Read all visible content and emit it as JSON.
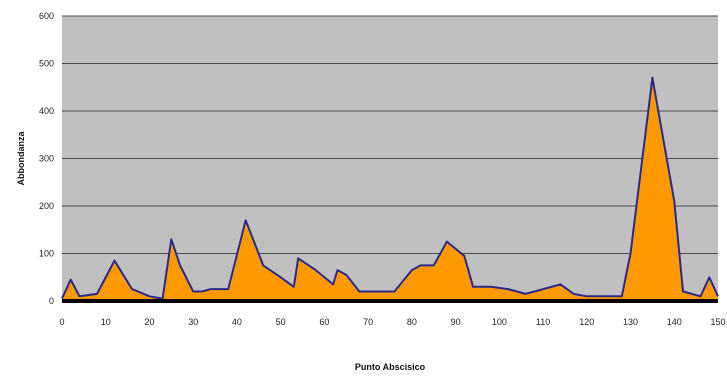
{
  "chart_data": {
    "type": "area",
    "title": "",
    "xlabel": "Punto Abscisico",
    "ylabel": "Abbondanza",
    "xlim": [
      0,
      150
    ],
    "ylim": [
      0,
      600
    ],
    "x_ticks": [
      0,
      10,
      20,
      30,
      40,
      50,
      60,
      70,
      80,
      90,
      100,
      110,
      120,
      130,
      140,
      150
    ],
    "y_ticks": [
      0,
      100,
      200,
      300,
      400,
      500,
      600
    ],
    "grid": "horizontal",
    "legend": "none",
    "colors": {
      "plot_background": "#c0c0c0",
      "area_fill": "#ff9900",
      "line": "#2a2a8a",
      "gridline": "#4a4a4a",
      "baseline": "#000000"
    },
    "series": [
      {
        "x": [
          0,
          2,
          4,
          8,
          12,
          16,
          20,
          23,
          25,
          27,
          30,
          32,
          34,
          38,
          42,
          46,
          50,
          53,
          54,
          58,
          62,
          63,
          65,
          68,
          72,
          76,
          80,
          82,
          85,
          88,
          92,
          94,
          98,
          102,
          106,
          110,
          114,
          117,
          120,
          124,
          128,
          130,
          135,
          140,
          142,
          144,
          146,
          148,
          150
        ],
        "values": [
          5,
          45,
          10,
          15,
          85,
          25,
          10,
          5,
          130,
          75,
          20,
          20,
          25,
          25,
          170,
          75,
          50,
          30,
          90,
          65,
          35,
          65,
          55,
          20,
          20,
          20,
          65,
          75,
          75,
          125,
          95,
          30,
          30,
          25,
          15,
          25,
          35,
          15,
          10,
          10,
          10,
          100,
          470,
          210,
          20,
          15,
          10,
          50,
          10
        ]
      }
    ]
  }
}
